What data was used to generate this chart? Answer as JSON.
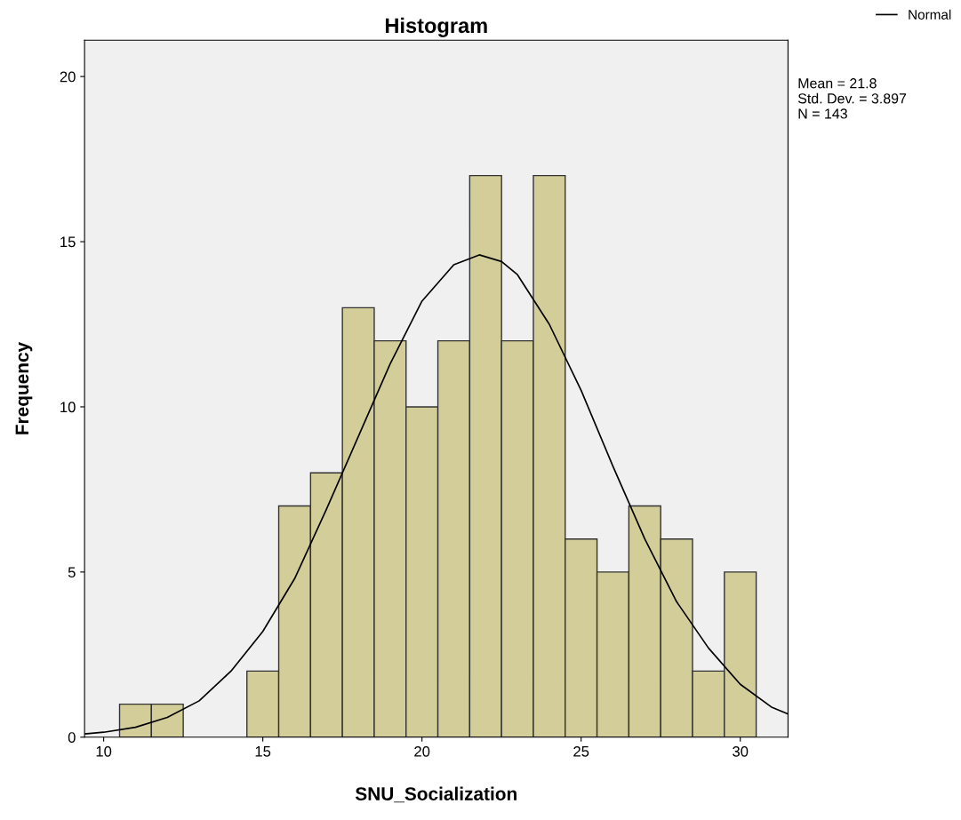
{
  "chart_data": {
    "type": "histogram",
    "title": "Histogram",
    "xlabel": "SNU_Socialization",
    "ylabel": "Frequency",
    "bins": [
      10.5,
      11.5,
      12.5,
      13.5,
      14.5,
      15.5,
      16.5,
      17.5,
      18.5,
      19.5,
      20.5,
      21.5,
      22.5,
      23.5,
      24.5,
      25.5,
      26.5,
      27.5,
      28.5,
      29.5,
      30.5
    ],
    "values": [
      1,
      1,
      0,
      0,
      2,
      7,
      8,
      13,
      12,
      10,
      12,
      17,
      12,
      17,
      6,
      5,
      7,
      6,
      2,
      5
    ],
    "color": "#d3ce99",
    "series": [
      {
        "name": "Normal",
        "type": "line",
        "color": "#000000",
        "x": [
          9.4,
          10,
          11,
          12,
          13,
          14,
          15,
          16,
          17,
          18,
          19,
          20,
          21,
          21.8,
          22.5,
          23,
          24,
          25,
          26,
          27,
          28,
          29,
          30,
          31,
          31.5
        ],
        "values": [
          0.1,
          0.15,
          0.3,
          0.6,
          1.1,
          2.0,
          3.2,
          4.8,
          6.9,
          9.1,
          11.3,
          13.2,
          14.3,
          14.6,
          14.4,
          14.0,
          12.5,
          10.5,
          8.2,
          6.0,
          4.1,
          2.7,
          1.6,
          0.9,
          0.7
        ]
      }
    ],
    "xlim": [
      9.4,
      31.5
    ],
    "ylim": [
      0,
      21.1
    ],
    "xticks": [
      10,
      15,
      20,
      25,
      30
    ],
    "yticks": [
      0,
      5,
      10,
      15,
      20
    ],
    "grid": false,
    "legend": "top right",
    "annotations": [
      "Mean = 21.8",
      "Std. Dev. = 3.897",
      "N = 143"
    ]
  }
}
